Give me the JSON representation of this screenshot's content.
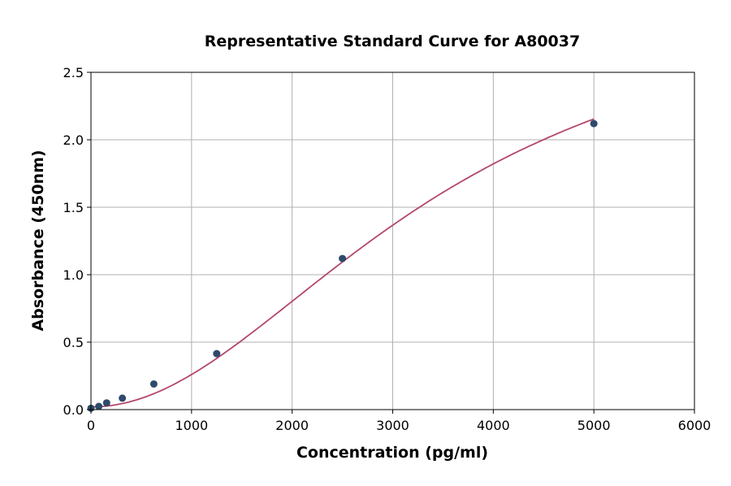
{
  "chart_data": {
    "type": "scatter",
    "title": "Representative Standard Curve for A80037",
    "xlabel": "Concentration (pg/ml)",
    "ylabel": "Absorbance (450nm)",
    "xlim": [
      0,
      6000
    ],
    "ylim": [
      0,
      2.5
    ],
    "xticks": [
      "0",
      "1000",
      "2000",
      "3000",
      "4000",
      "5000",
      "6000"
    ],
    "yticks": [
      "0.0",
      "0.5",
      "1.0",
      "1.5",
      "2.0",
      "2.5"
    ],
    "grid": true,
    "points": {
      "x": [
        0,
        78,
        156,
        312,
        625,
        1250,
        2500,
        5000
      ],
      "y": [
        0.01,
        0.024,
        0.05,
        0.085,
        0.19,
        0.415,
        1.12,
        2.12
      ]
    },
    "fit_curve": "4-parameter logistic",
    "colors": {
      "points": "#2e4a6b",
      "curve": "#b5466b",
      "grid": "#b0b0b0"
    }
  }
}
